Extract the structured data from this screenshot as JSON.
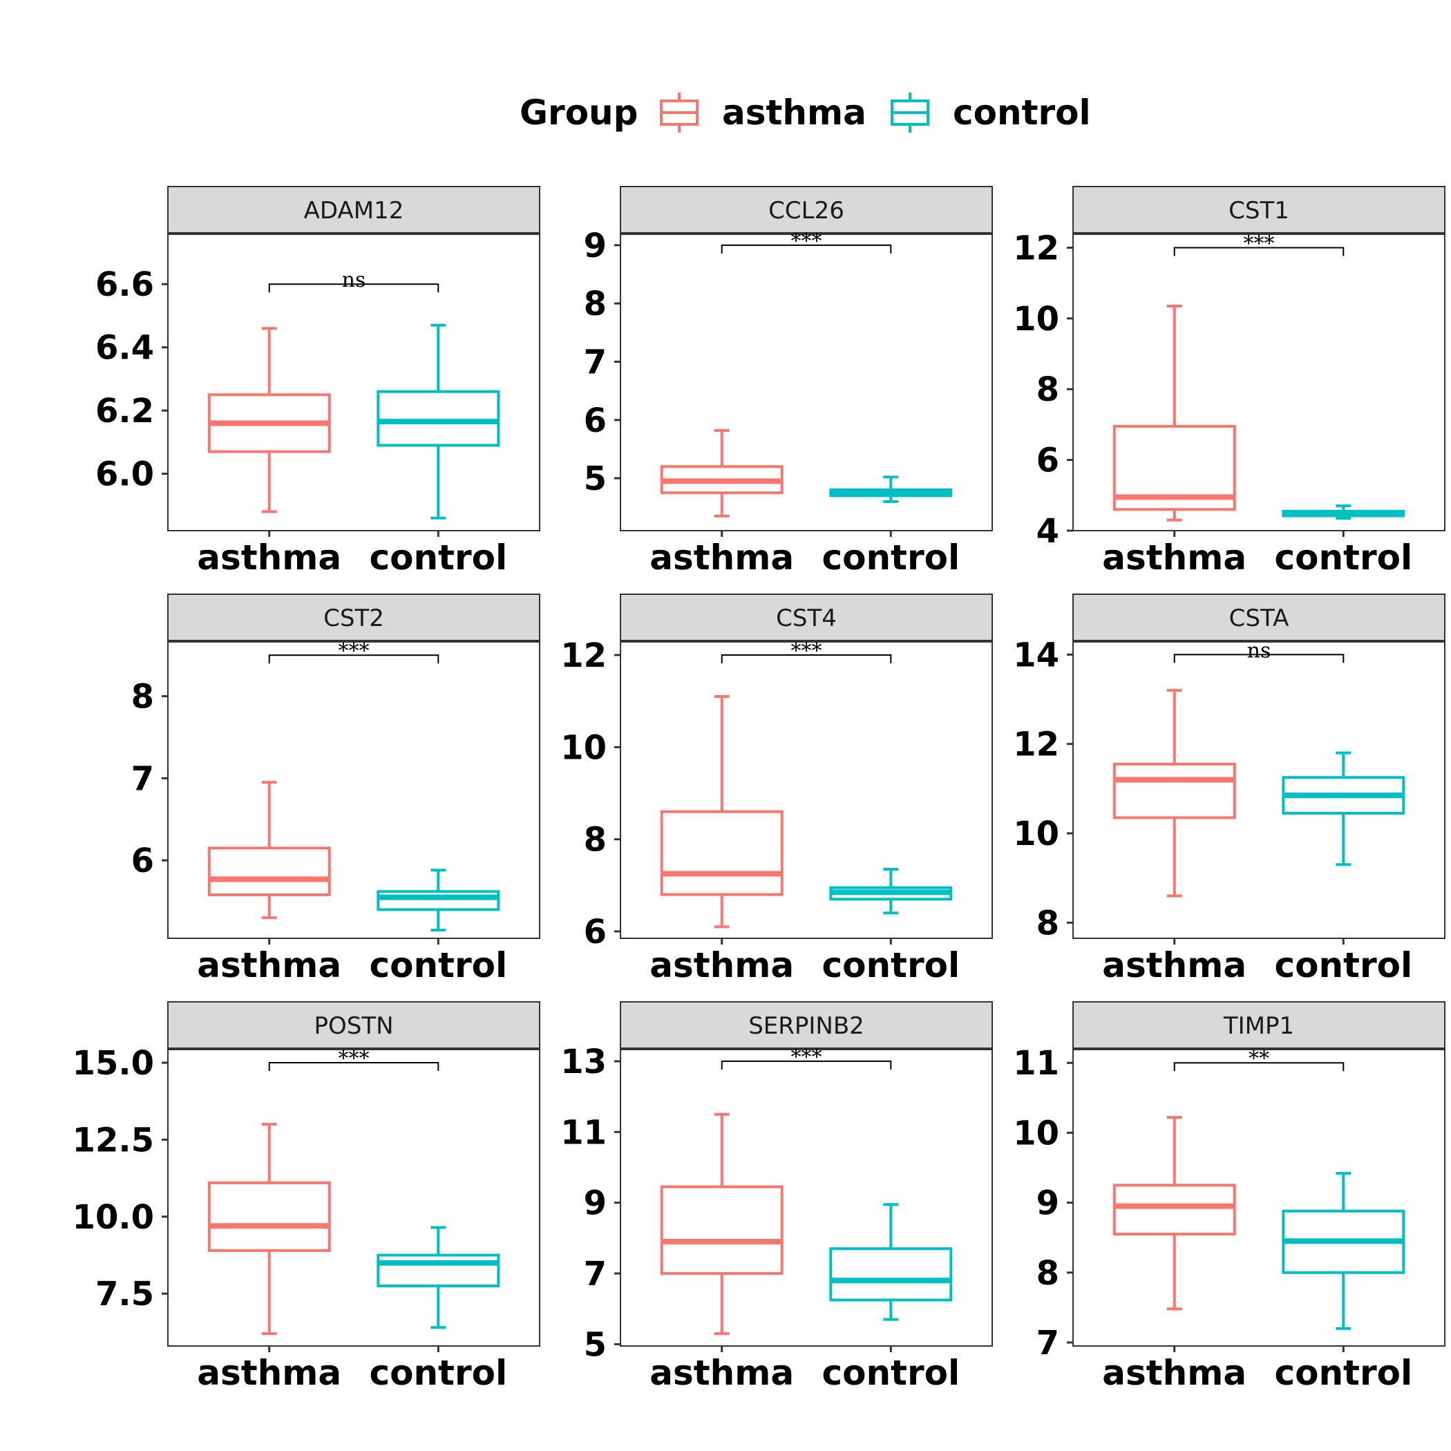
{
  "legend": {
    "title": "Group",
    "items": [
      {
        "label": "asthma",
        "color": "#F8766D"
      },
      {
        "label": "control",
        "color": "#00BFC4"
      }
    ]
  },
  "chart_data": {
    "type": "boxplot",
    "categories": [
      "asthma",
      "control"
    ],
    "colors": {
      "asthma": "#F8766D",
      "control": "#00BFC4"
    },
    "panels": [
      {
        "gene": "ADAM12",
        "ylim": [
          5.82,
          6.76
        ],
        "yticks": [
          6.0,
          6.2,
          6.4,
          6.6
        ],
        "tickDecimals": 1,
        "sig": "ns",
        "sigY": 6.6,
        "boxes": [
          {
            "group": "asthma",
            "lower": 5.88,
            "q1": 6.07,
            "median": 6.16,
            "q3": 6.25,
            "upper": 6.46
          },
          {
            "group": "control",
            "lower": 5.86,
            "q1": 6.09,
            "median": 6.165,
            "q3": 6.26,
            "upper": 6.47
          }
        ]
      },
      {
        "gene": "CCL26",
        "ylim": [
          4.1,
          9.2
        ],
        "yticks": [
          5,
          6,
          7,
          8,
          9
        ],
        "tickDecimals": 0,
        "sig": "***",
        "sigY": 9.0,
        "boxes": [
          {
            "group": "asthma",
            "lower": 4.35,
            "q1": 4.75,
            "median": 4.95,
            "q3": 5.2,
            "upper": 5.82
          },
          {
            "group": "control",
            "lower": 4.6,
            "q1": 4.7,
            "median": 4.75,
            "q3": 4.8,
            "upper": 5.02
          }
        ]
      },
      {
        "gene": "CST1",
        "ylim": [
          4.0,
          12.4
        ],
        "yticks": [
          4,
          6,
          8,
          10,
          12
        ],
        "tickDecimals": 0,
        "sig": "***",
        "sigY": 12.0,
        "boxes": [
          {
            "group": "asthma",
            "lower": 4.3,
            "q1": 4.6,
            "median": 4.95,
            "q3": 6.95,
            "upper": 10.35
          },
          {
            "group": "control",
            "lower": 4.35,
            "q1": 4.42,
            "median": 4.5,
            "q3": 4.55,
            "upper": 4.7
          }
        ]
      },
      {
        "gene": "CST2",
        "ylim": [
          5.05,
          8.67
        ],
        "yticks": [
          6,
          7,
          8
        ],
        "tickDecimals": 0,
        "sig": "***",
        "sigY": 8.5,
        "boxes": [
          {
            "group": "asthma",
            "lower": 5.3,
            "q1": 5.58,
            "median": 5.77,
            "q3": 6.15,
            "upper": 6.95
          },
          {
            "group": "control",
            "lower": 5.15,
            "q1": 5.4,
            "median": 5.55,
            "q3": 5.62,
            "upper": 5.88
          }
        ]
      },
      {
        "gene": "CST4",
        "ylim": [
          5.85,
          12.3
        ],
        "yticks": [
          6,
          8,
          10,
          12
        ],
        "tickDecimals": 0,
        "sig": "***",
        "sigY": 12.0,
        "boxes": [
          {
            "group": "asthma",
            "lower": 6.1,
            "q1": 6.8,
            "median": 7.25,
            "q3": 8.6,
            "upper": 11.1
          },
          {
            "group": "control",
            "lower": 6.4,
            "q1": 6.7,
            "median": 6.85,
            "q3": 6.95,
            "upper": 7.35
          }
        ]
      },
      {
        "gene": "CSTA",
        "ylim": [
          7.65,
          14.3
        ],
        "yticks": [
          8,
          10,
          12,
          14
        ],
        "tickDecimals": 0,
        "sig": "ns",
        "sigY": 14.0,
        "boxes": [
          {
            "group": "asthma",
            "lower": 8.6,
            "q1": 10.35,
            "median": 11.2,
            "q3": 11.55,
            "upper": 13.2
          },
          {
            "group": "control",
            "lower": 9.3,
            "q1": 10.45,
            "median": 10.85,
            "q3": 11.25,
            "upper": 11.8
          }
        ]
      },
      {
        "gene": "POSTN",
        "ylim": [
          5.8,
          15.45
        ],
        "yticks": [
          7.5,
          10.0,
          12.5,
          15.0
        ],
        "tickDecimals": 1,
        "sig": "***",
        "sigY": 15.0,
        "boxes": [
          {
            "group": "asthma",
            "lower": 6.2,
            "q1": 8.9,
            "median": 9.7,
            "q3": 11.1,
            "upper": 13.0
          },
          {
            "group": "control",
            "lower": 6.4,
            "q1": 7.75,
            "median": 8.5,
            "q3": 8.75,
            "upper": 9.65
          }
        ]
      },
      {
        "gene": "SERPINB2",
        "ylim": [
          4.95,
          13.35
        ],
        "yticks": [
          5,
          7,
          9,
          11,
          13
        ],
        "tickDecimals": 0,
        "sig": "***",
        "sigY": 13.0,
        "boxes": [
          {
            "group": "asthma",
            "lower": 5.3,
            "q1": 7.0,
            "median": 7.9,
            "q3": 9.45,
            "upper": 11.5
          },
          {
            "group": "control",
            "lower": 5.7,
            "q1": 6.25,
            "median": 6.8,
            "q3": 7.7,
            "upper": 8.95
          }
        ]
      },
      {
        "gene": "TIMP1",
        "ylim": [
          6.95,
          11.2
        ],
        "yticks": [
          7,
          8,
          9,
          10,
          11
        ],
        "tickDecimals": 0,
        "sig": "**",
        "sigY": 11.0,
        "boxes": [
          {
            "group": "asthma",
            "lower": 7.48,
            "q1": 8.55,
            "median": 8.95,
            "q3": 9.25,
            "upper": 10.22
          },
          {
            "group": "control",
            "lower": 7.2,
            "q1": 8.0,
            "median": 8.45,
            "q3": 8.88,
            "upper": 9.42
          }
        ]
      }
    ]
  }
}
